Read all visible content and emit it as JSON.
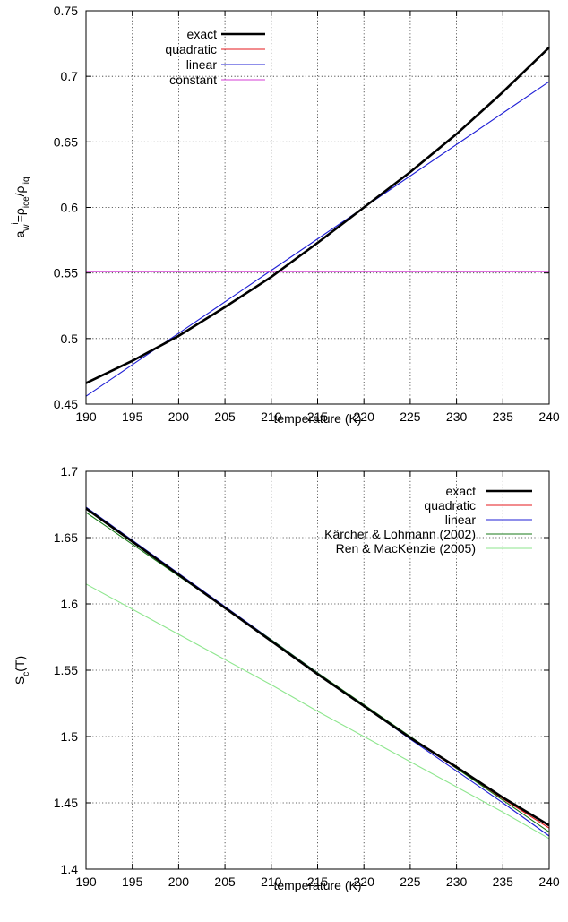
{
  "chart_data": [
    {
      "type": "line",
      "xlabel": "temperature (K)",
      "ylabel": {
        "base": "a",
        "sub1": "w",
        "sup1": "i",
        "mid": "=ρ",
        "sub2": "ice",
        "sep": "/ρ",
        "sub3": "liq"
      },
      "xlim": [
        190,
        240
      ],
      "ylim": [
        0.45,
        0.75
      ],
      "xticks": [
        "190",
        "195",
        "200",
        "205",
        "210",
        "215",
        "220",
        "225",
        "230",
        "235",
        "240"
      ],
      "yticks": [
        "0.45",
        "0.5",
        "0.55",
        "0.6",
        "0.65",
        "0.7",
        "0.75"
      ],
      "grid": true,
      "legend_position": "top-left",
      "x": [
        190,
        195,
        200,
        205,
        210,
        215,
        220,
        225,
        230,
        235,
        240
      ],
      "series": [
        {
          "name": "exact",
          "color": "#000000",
          "values": [
            0.466,
            0.483,
            0.502,
            0.524,
            0.547,
            0.573,
            0.6,
            0.627,
            0.656,
            0.688,
            0.722
          ]
        },
        {
          "name": "quadratic",
          "color": "#e41a1c",
          "values": [
            0.466,
            0.483,
            0.502,
            0.524,
            0.547,
            0.573,
            0.6,
            0.627,
            0.656,
            0.688,
            0.722
          ]
        },
        {
          "name": "linear",
          "color": "#1f1fd6",
          "values": [
            0.456,
            0.48,
            0.504,
            0.528,
            0.552,
            0.576,
            0.6,
            0.624,
            0.648,
            0.672,
            0.696
          ]
        },
        {
          "name": "constant",
          "color": "#d43fd4",
          "values": [
            0.551,
            0.551,
            0.551,
            0.551,
            0.551,
            0.551,
            0.551,
            0.551,
            0.551,
            0.551,
            0.551
          ]
        }
      ]
    },
    {
      "type": "line",
      "xlabel": "temperature (K)",
      "ylabel": {
        "base": "S",
        "sub1": "c",
        "rest": "(T)"
      },
      "xlim": [
        190,
        240
      ],
      "ylim": [
        1.4,
        1.7
      ],
      "xticks": [
        "190",
        "195",
        "200",
        "205",
        "210",
        "215",
        "220",
        "225",
        "230",
        "235",
        "240"
      ],
      "yticks": [
        "1.4",
        "1.45",
        "1.5",
        "1.55",
        "1.6",
        "1.65",
        "1.7"
      ],
      "grid": true,
      "legend_position": "top-right",
      "x": [
        190,
        195,
        200,
        205,
        210,
        215,
        220,
        225,
        230,
        235,
        240
      ],
      "series": [
        {
          "name": "exact",
          "color": "#000000",
          "values": [
            1.672,
            1.647,
            1.622,
            1.597,
            1.572,
            1.547,
            1.523,
            1.499,
            1.477,
            1.454,
            1.433
          ]
        },
        {
          "name": "quadratic",
          "color": "#e41a1c",
          "values": [
            1.672,
            1.647,
            1.622,
            1.597,
            1.572,
            1.547,
            1.523,
            1.499,
            1.476,
            1.453,
            1.431
          ]
        },
        {
          "name": "linear",
          "color": "#1f1fd6",
          "values": [
            1.673,
            1.648,
            1.623,
            1.598,
            1.573,
            1.548,
            1.523,
            1.498,
            1.474,
            1.45,
            1.425
          ]
        },
        {
          "name": "Kärcher & Lohmann (2002)",
          "color": "#1a7a1a",
          "values": [
            1.669,
            1.645,
            1.621,
            1.597,
            1.573,
            1.548,
            1.524,
            1.5,
            1.476,
            1.452,
            1.428
          ]
        },
        {
          "name": "Ren & MacKenzie (2005)",
          "color": "#8ee68e",
          "values": [
            1.615,
            1.596,
            1.577,
            1.558,
            1.539,
            1.519,
            1.5,
            1.481,
            1.462,
            1.443,
            1.423
          ]
        }
      ]
    }
  ]
}
